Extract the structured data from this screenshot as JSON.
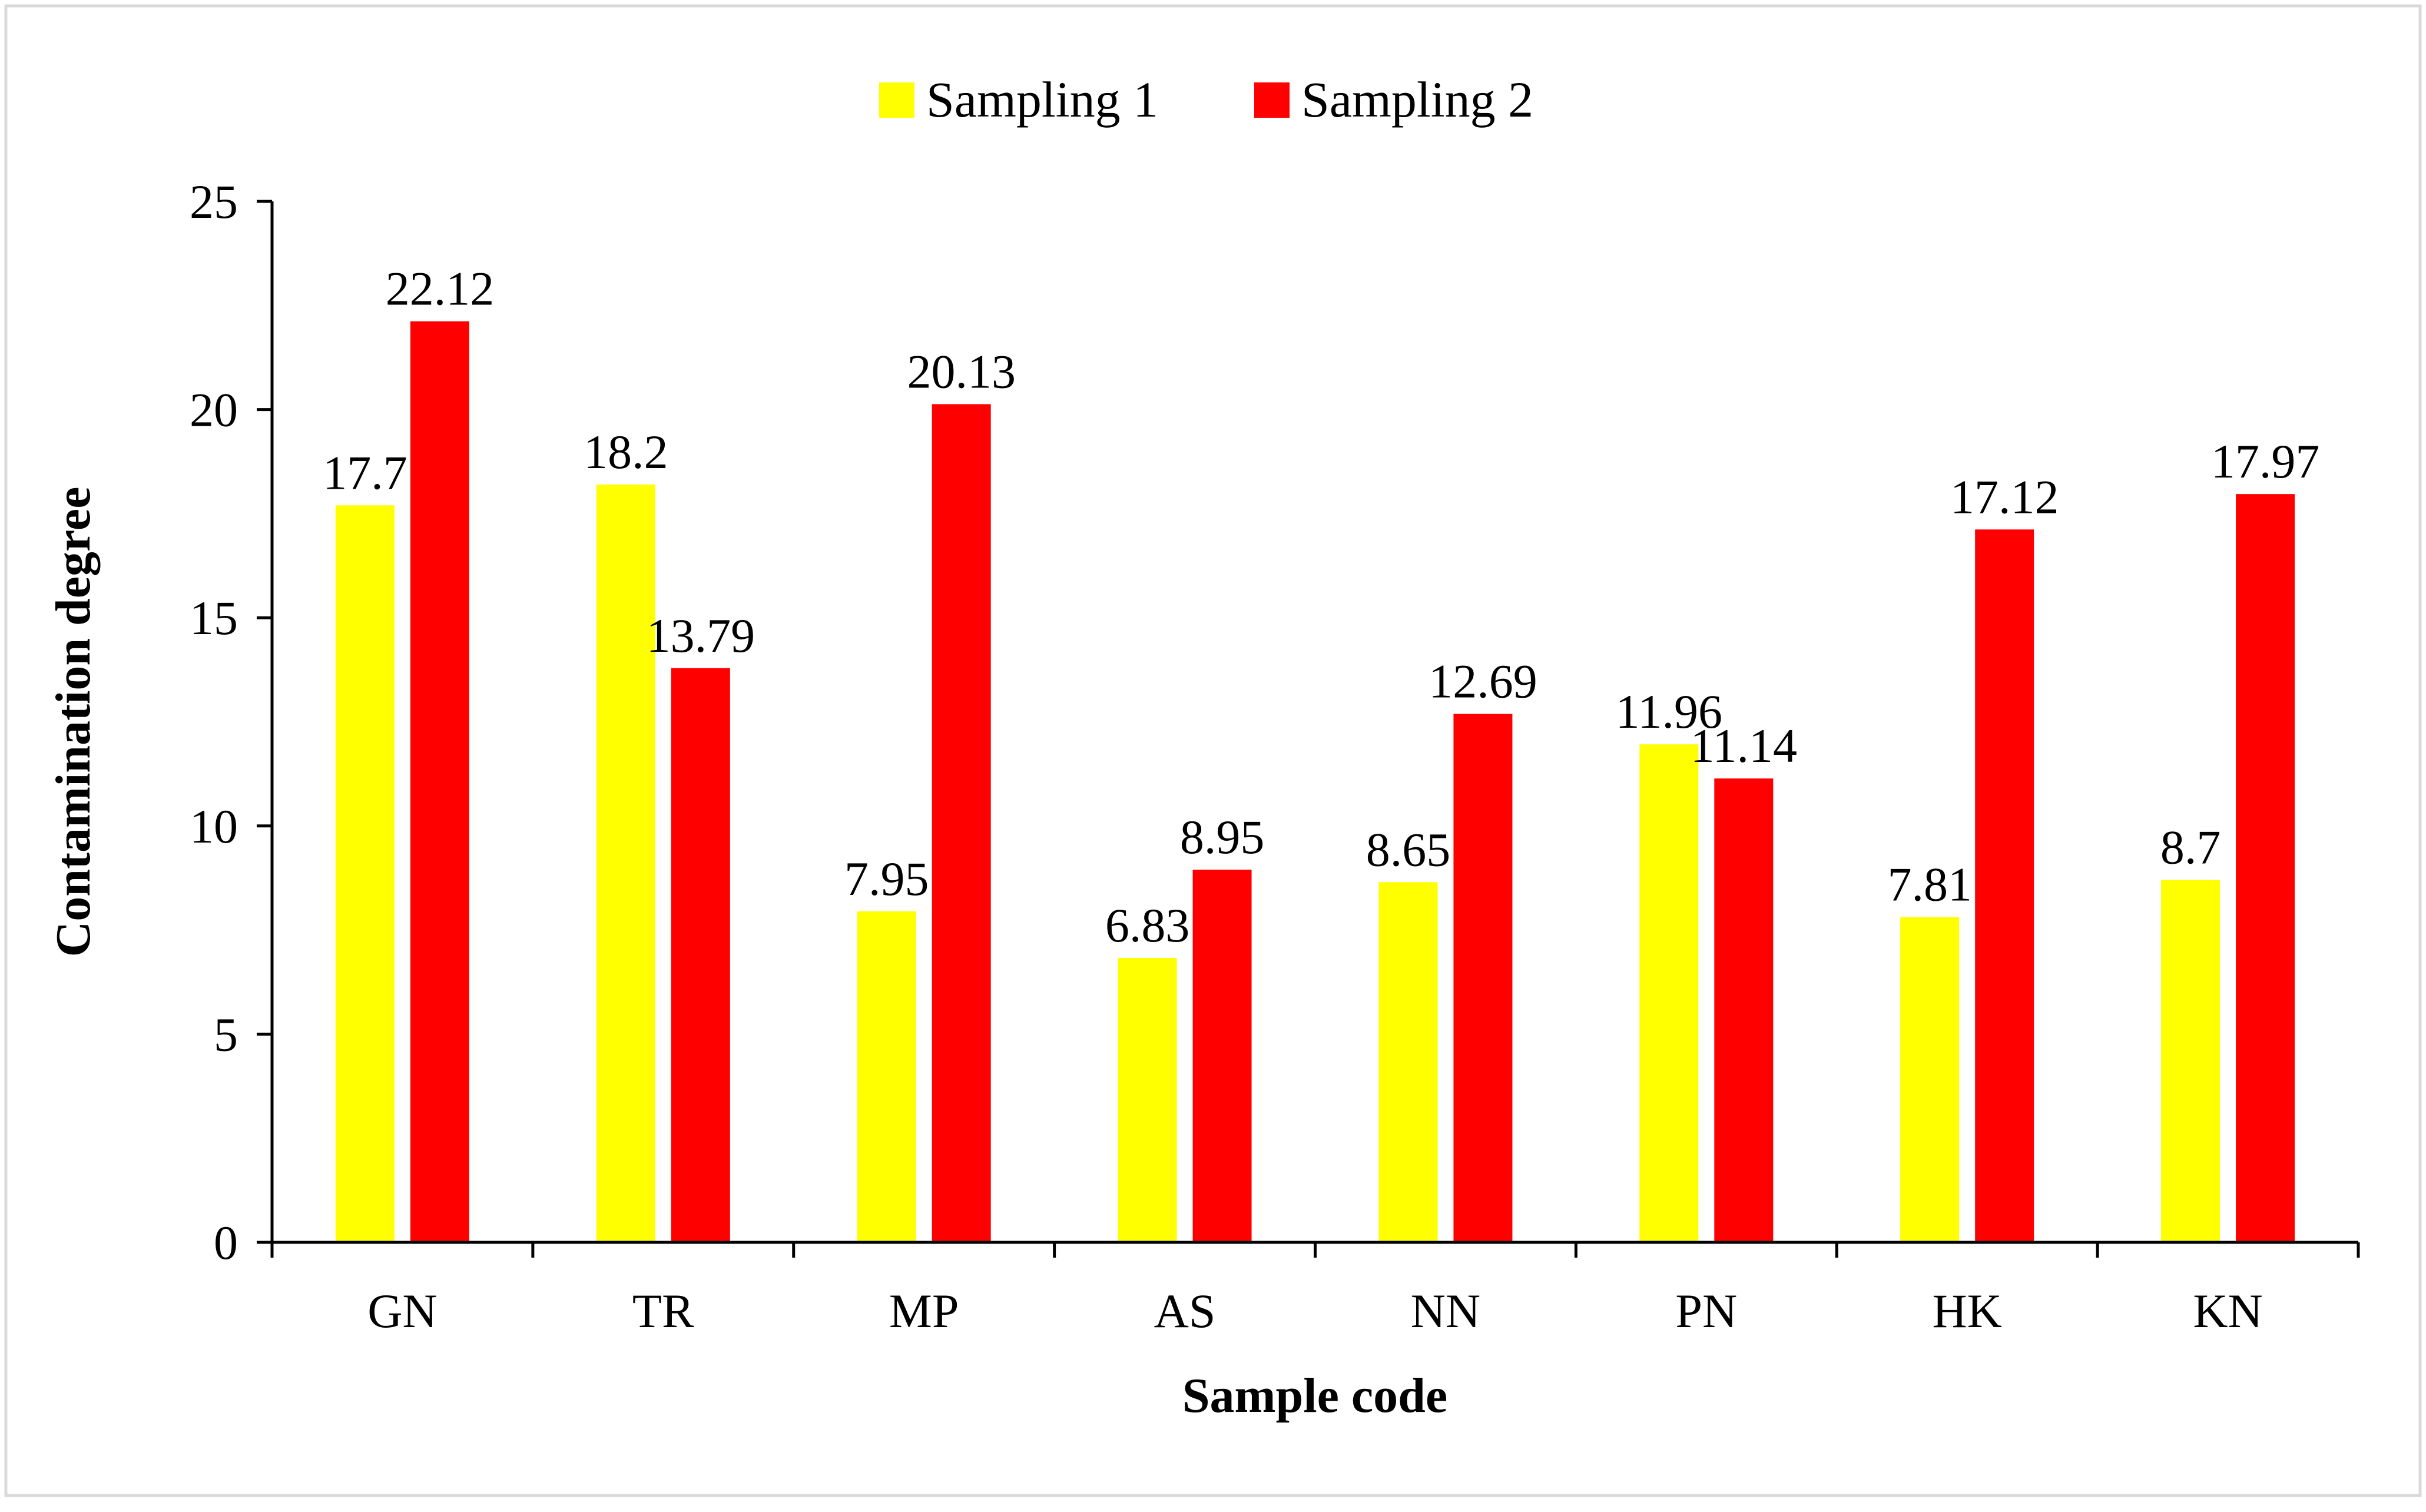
{
  "chart_data": {
    "type": "bar",
    "title": "",
    "xlabel": "Sample code",
    "ylabel": "Contamination degree",
    "categories": [
      "GN",
      "TR",
      "MP",
      "AS",
      "NN",
      "PN",
      "HK",
      "KN"
    ],
    "series": [
      {
        "name": "Sampling 1",
        "color": "#ffff00",
        "values": [
          17.7,
          18.2,
          7.95,
          6.83,
          8.65,
          11.96,
          7.81,
          8.7
        ],
        "labels": [
          "17.7",
          "18.2",
          "7.95",
          "6.83",
          "8.65",
          "11.96",
          "7.81",
          "8.7"
        ]
      },
      {
        "name": "Sampling 2",
        "color": "#ff0000",
        "values": [
          22.12,
          13.79,
          20.13,
          8.95,
          12.69,
          11.14,
          17.12,
          17.97
        ],
        "labels": [
          "22.12",
          "13.79",
          "20.13",
          "8.95",
          "12.69",
          "11.14",
          "17.12",
          "17.97"
        ]
      }
    ],
    "ylim": [
      0,
      25
    ],
    "yticks": [
      "0",
      "5",
      "10",
      "15",
      "20",
      "25"
    ],
    "grid": false,
    "legend_position": "top"
  }
}
